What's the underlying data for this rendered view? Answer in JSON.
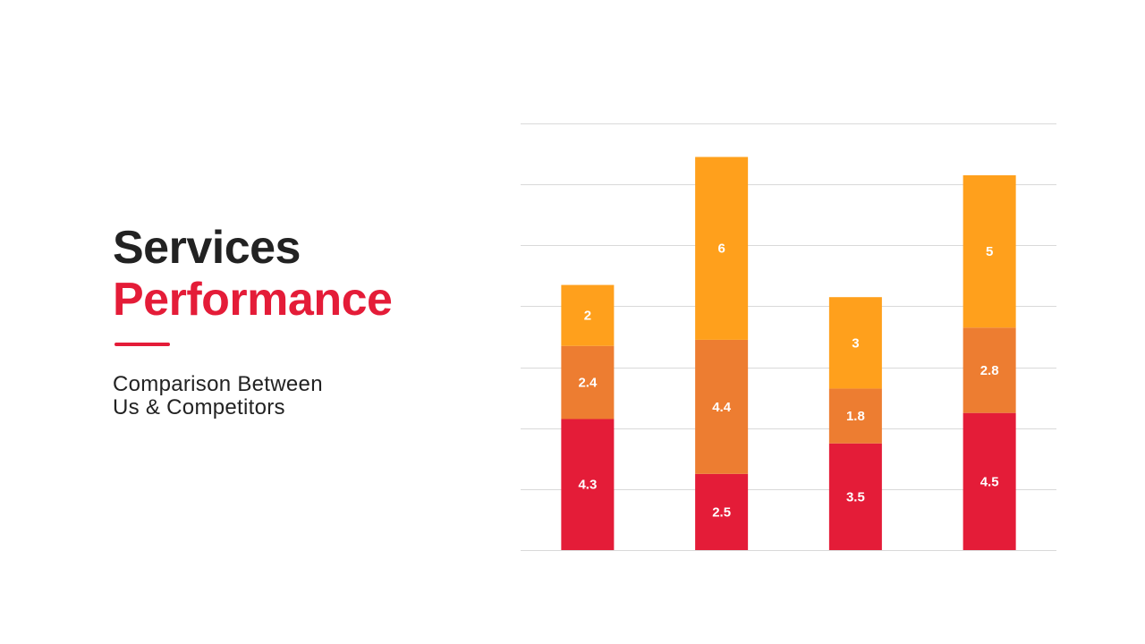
{
  "title": {
    "line1": "Services",
    "line2": "Performance"
  },
  "subtitle": {
    "line1": "Comparison Between",
    "line2": "Us & Competitors"
  },
  "colors": {
    "accent": "#e41c38",
    "text": "#222222",
    "grid": "#d9d9d9"
  },
  "chart_data": {
    "type": "bar",
    "stacked": true,
    "categories": [
      "",
      "",
      "",
      ""
    ],
    "series": [
      {
        "values": [
          4.3,
          2.5,
          3.5,
          4.5
        ],
        "color": "#e41c38"
      },
      {
        "values": [
          2.4,
          4.4,
          1.8,
          2.8
        ],
        "color": "#ed7d31"
      },
      {
        "values": [
          2,
          6,
          3,
          5
        ],
        "color": "#ffa01c"
      }
    ],
    "ylim": [
      0,
      14
    ],
    "y_gridline_step": 2,
    "grid": true,
    "data_labels": true
  }
}
